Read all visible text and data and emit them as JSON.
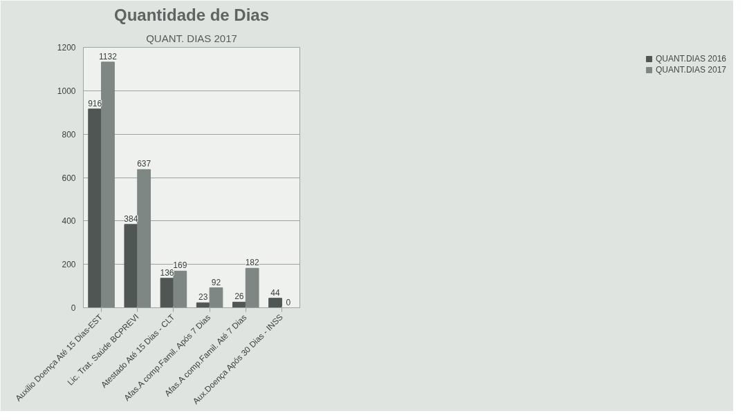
{
  "chart_data": {
    "type": "bar",
    "title": "Quantidade de Dias",
    "subtitle": "QUANT. DIAS 2017",
    "categories": [
      "Auxilio Doença Até 15 Dias-EST",
      "Lic. Trat. Saúde BCPREVI",
      "Atestado Até 15 Dias - CLT",
      "Afas.A comp.Famil. Após 7 Dias",
      "Afas.A comp.Famil. Até 7 Dias",
      "Aux.Doença Após 30 Dias - INSS"
    ],
    "series": [
      {
        "name": "QUANT.DIAS 2016",
        "color": "#4f5654",
        "values": [
          916,
          384,
          136,
          23,
          26,
          44
        ]
      },
      {
        "name": "QUANT.DIAS 2017",
        "color": "#7e8784",
        "values": [
          1132,
          637,
          169,
          92,
          182,
          0
        ]
      }
    ],
    "ylim": [
      0,
      1200
    ],
    "yticks": [
      0,
      200,
      400,
      600,
      800,
      1000,
      1200
    ],
    "grid": "y",
    "legend": "right",
    "data_labels": true
  }
}
